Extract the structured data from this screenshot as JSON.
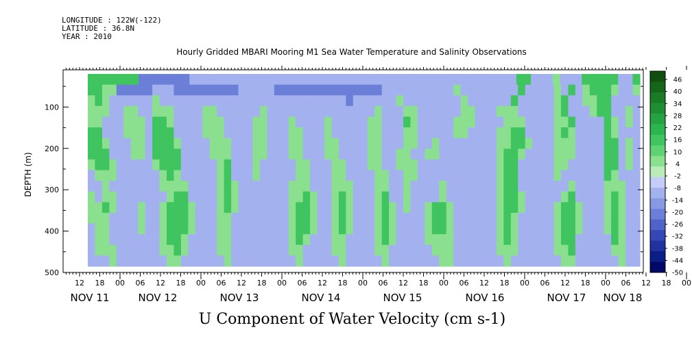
{
  "header": {
    "longitude": "LONGITUDE : 122W(-122)",
    "latitude": "LATITUDE : 36.8N",
    "year": "YEAR : 2010"
  },
  "chart_data": {
    "type": "heatmap",
    "title": "Hourly Gridded MBARI Mooring M1 Sea Water Temperature and Salinity Observations",
    "xlabel": "",
    "ylabel": "DEPTH (m)",
    "variable_label": "U Component of Water Velocity (cm s-1)",
    "y_ticks": [
      "100",
      "200",
      "300",
      "400",
      "500"
    ],
    "y_tick_values": [
      100,
      200,
      300,
      400,
      500
    ],
    "ylim": [
      500,
      10
    ],
    "data_depth_range": [
      20,
      485
    ],
    "x_hour_ticks": [
      "12",
      "18",
      "00",
      "06",
      "12",
      "18",
      "00",
      "06",
      "12",
      "18",
      "00",
      "06",
      "12",
      "18",
      "00",
      "06",
      "12",
      "18",
      "00",
      "06",
      "12",
      "18",
      "00",
      "06",
      "12",
      "18",
      "00",
      "06",
      "12",
      "18",
      "00",
      "06"
    ],
    "x_day_labels": [
      "NOV 11",
      "NOV 12",
      "NOV 13",
      "NOV 14",
      "NOV 15",
      "NOV 16",
      "NOV 17",
      "NOV 18"
    ],
    "colorbar": {
      "labels": [
        "46",
        "40",
        "34",
        "28",
        "22",
        "16",
        "10",
        "4",
        "-2",
        "-8",
        "-14",
        "-20",
        "-26",
        "-32",
        "-38",
        "-44",
        "-50"
      ],
      "colors": [
        "#104f10",
        "#15651a",
        "#1a7a26",
        "#1f8e33",
        "#25a241",
        "#2cb44f",
        "#3fc45f",
        "#5fd273",
        "#8ae08f",
        "#b9ecb8",
        "#c4cdf7",
        "#a4b1ef",
        "#8798e4",
        "#6b7fd8",
        "#4f64c8",
        "#3549b6",
        "#1f32a0",
        "#0b1d86",
        "#000a66"
      ]
    },
    "heatmap_rows": [
      "GGGGGGGBBBBBBBbbbbbbbbbbbbbbbbbbbbbbbbbbbbbbbbbbbbbbbbbbbbbGGbbbgbbbGGGGGbbG",
      "GGggBBBBBbbbBBBBBBBBBbbbbbBBBBBBBBBBBBBBBbbbbbbbbbbgbbbbbbbbGbbbbgbGbgGGGgbbg",
      "gGgbbbbbbgbbbbbbbbbbbbbbbbbbbbbbbbbbBbbbbbbgbbbbbbbbgbbbbbbGbbbbbgGbbggGGbbbb",
      "gggbbggbbgggbbbbggbbbbbbgbbbbbbbbbbbbbbbgbbbggbbbbbbggbbbgggbbbbbgGbbbgGGbbgb",
      "ggbbbgggbGGgbbbbgggbbbbggbbbgbbbbgbbbbbggbbbGgbbbbbgggbbbbgggbbbbggGbbbbGgbgb",
      "GGbbbgggbGGGbbbbgggbbbbggbbbggbbbgbbbbbggbbbggbbbbbggbbbbggGGbbbbgGgbbbbGgbbb",
      "GGgbbbggbGGGgbbbbgggbbbggbbbggbbbggbbbbggbbbggbbgbbbbbbbbggGGgbbbgggbbbbGGbgb",
      "GGGbbbggbGGGGbbbbgggbbbggbbbggbbbggbbbbggbbggbbggbbbbbbbbgGGgbbbbgggbbbbGGbgb",
      "gGGgbbbbbgGGGbbbbbgGbbbgbbbbbggbbbggbbbggbbgggbbbbbbbbbbbgGGbbbbbggbbbbbGGbgb",
      "bgggbbbbbbgGgbbbbbgGbbbgbbbbbggbbbggbbbbggbbggbbbbbbbbbbbgGGbbbbbgbbbbbbGgbbb",
      "bbgbbbbbbbggggbbbbgGgbbbbbbbgggbbbgggbbbggbbgbbbbgbbbbbbbgGGbbbbbbbgbbbbgggbb",
      "gbggbbbbbbbgGGbbbbgGgbbbbbbbggGgbbgGgbbbgGbbgbbbbgbbbbbbbgGGgbbbbbgGbbbbgGgbb",
      "ggGgbbbgbbgGGGgbbbgGgbbbbbbbgGGgbbgGgbbbgGgbgbbgGGgbbbbbbgGGgbbbbgGGgbbbgGgbb",
      "gggbbbbgbbgGGGgbbbggbbbbbbbbgGGgbbgGgbbbgGgbbbbgGGgbbbbbbgGgbbbbbgGGgbbbgGgbb",
      "bggbbbbgbbgGGGgbbbggbbbbbbbbgGGgbbgGgbbbgGgbbbbgGGgbbbbbbgGgbbbbbgGGgbbbgGgbb",
      "bggbbbbbbbgGGgbbbbggbbbbbbbbgGgbbbggbbbbgGgbbbbggggbbbbbbgGgbbbbbgGGbbbbbGgbb",
      "bgggbbbbbbggGgbbbbggbbbbbbbbggbbbbggbbbbggbbbbbbgggbbbbbbgggbbbbbggGbbbbbggbb",
      "bbbgbbbbbbbggbbbbbbgbbbbbbbbbgbbbbbgbbbbbgbbbbbbbggbbbbbbbgbbbbbbbggbbbbbbgbb"
    ],
    "heatmap_legend": {
      "G": "strong eastward (~10 to 16)",
      "g": "weak eastward (~0 to 4)",
      "b": "weak westward (~-2 to -8)",
      "B": "strong westward (~-14 to -26)"
    }
  }
}
